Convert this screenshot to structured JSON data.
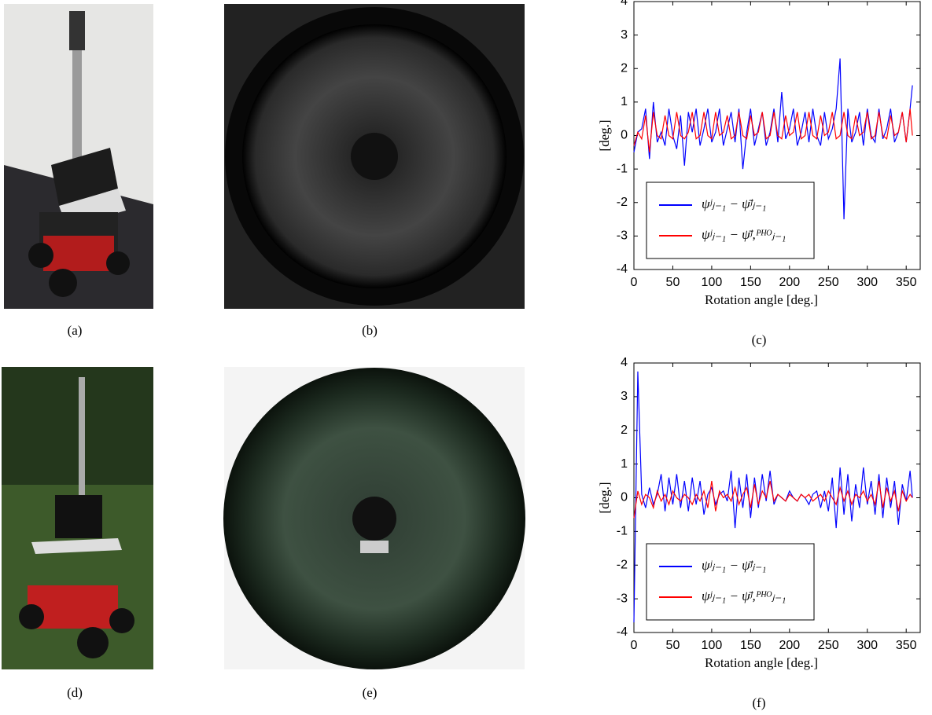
{
  "photos": [
    {
      "caption": "(a)"
    },
    {
      "caption": "(b)"
    },
    {
      "caption": "(d)"
    },
    {
      "caption": "(e)"
    }
  ],
  "chart_data": [
    {
      "type": "line",
      "caption": "(c)",
      "xlabel": "Rotation angle [deg.]",
      "ylabel": "[deg.]",
      "xlim": [
        0,
        368
      ],
      "ylim": [
        -4,
        4
      ],
      "xticks": [
        0,
        50,
        100,
        150,
        200,
        250,
        300,
        350
      ],
      "yticks": [
        -4,
        -3,
        -2,
        -1,
        0,
        1,
        2,
        3,
        4
      ],
      "x": [
        0,
        5,
        10,
        15,
        20,
        25,
        30,
        35,
        40,
        45,
        50,
        55,
        60,
        65,
        70,
        75,
        80,
        85,
        90,
        95,
        100,
        105,
        110,
        115,
        120,
        125,
        130,
        135,
        140,
        145,
        150,
        155,
        160,
        165,
        170,
        175,
        180,
        185,
        190,
        195,
        200,
        205,
        210,
        215,
        220,
        225,
        230,
        235,
        240,
        245,
        250,
        255,
        260,
        265,
        270,
        275,
        280,
        285,
        290,
        295,
        300,
        305,
        310,
        315,
        320,
        325,
        330,
        335,
        340,
        345,
        350,
        355,
        358
      ],
      "series": [
        {
          "name": "ψʲⱼ₋₁ − ψ̄ʲⱼ₋₁",
          "color": "#0000ff",
          "values": [
            -0.5,
            0.1,
            0.2,
            0.8,
            -0.7,
            1.0,
            -0.2,
            0.1,
            -0.3,
            0.8,
            0.0,
            -0.4,
            0.6,
            -0.9,
            0.7,
            0.1,
            0.8,
            -0.3,
            0.2,
            0.8,
            -0.2,
            0.1,
            0.8,
            -0.3,
            0.2,
            0.7,
            -0.2,
            0.8,
            -1.0,
            0.1,
            0.8,
            -0.3,
            0.2,
            0.7,
            -0.3,
            0.1,
            0.8,
            -0.2,
            1.3,
            -0.1,
            0.2,
            0.8,
            -0.3,
            0.1,
            0.7,
            -0.2,
            0.8,
            0.0,
            -0.3,
            0.7,
            -0.1,
            0.2,
            0.8,
            2.3,
            -2.5,
            0.8,
            -0.2,
            0.1,
            0.7,
            -0.3,
            0.8,
            0.0,
            -0.2,
            0.8,
            -0.1,
            0.2,
            0.8,
            -0.2,
            0.1,
            0.7,
            -0.2,
            0.8,
            1.5
          ]
        },
        {
          "name": "ψʲⱼ₋₁ − ψ̄ʲ,ᴾᴴᴼⱼ₋₁",
          "color": "#ff0000",
          "values": [
            -0.3,
            0.1,
            -0.1,
            0.6,
            -0.5,
            0.7,
            0.0,
            -0.1,
            0.6,
            0.0,
            -0.1,
            0.7,
            0.0,
            -0.1,
            0.1,
            0.7,
            -0.1,
            0.0,
            0.7,
            0.0,
            -0.1,
            0.7,
            0.0,
            0.1,
            0.6,
            -0.1,
            0.0,
            0.7,
            0.0,
            -0.1,
            0.6,
            0.0,
            0.1,
            0.7,
            -0.1,
            0.0,
            0.7,
            0.0,
            -0.1,
            0.6,
            0.0,
            0.1,
            0.7,
            -0.1,
            0.0,
            0.7,
            0.0,
            -0.1,
            0.6,
            0.0,
            0.1,
            0.7,
            -0.1,
            0.0,
            0.7,
            0.0,
            -0.1,
            0.6,
            0.0,
            0.1,
            0.7,
            -0.1,
            0.0,
            0.7,
            0.0,
            -0.1,
            0.6,
            0.0,
            0.1,
            0.7,
            -0.2,
            0.8,
            0.0
          ]
        }
      ]
    },
    {
      "type": "line",
      "caption": "(f)",
      "xlabel": "Rotation angle [deg.]",
      "ylabel": "[deg.]",
      "xlim": [
        0,
        368
      ],
      "ylim": [
        -4,
        4
      ],
      "xticks": [
        0,
        50,
        100,
        150,
        200,
        250,
        300,
        350
      ],
      "yticks": [
        -4,
        -3,
        -2,
        -1,
        0,
        1,
        2,
        3,
        4
      ],
      "x": [
        0,
        5,
        10,
        15,
        20,
        25,
        30,
        35,
        40,
        45,
        50,
        55,
        60,
        65,
        70,
        75,
        80,
        85,
        90,
        95,
        100,
        105,
        110,
        115,
        120,
        125,
        130,
        135,
        140,
        145,
        150,
        155,
        160,
        165,
        170,
        175,
        180,
        185,
        190,
        195,
        200,
        205,
        210,
        215,
        220,
        225,
        230,
        235,
        240,
        245,
        250,
        255,
        260,
        265,
        270,
        275,
        280,
        285,
        290,
        295,
        300,
        305,
        310,
        315,
        320,
        325,
        330,
        335,
        340,
        345,
        350,
        355,
        358
      ],
      "series": [
        {
          "name": "ψʲⱼ₋₁ − ψ̄ʲⱼ₋₁",
          "color": "#0000ff",
          "values": [
            -3.7,
            3.75,
            0.1,
            -0.3,
            0.3,
            -0.2,
            0.1,
            0.7,
            -0.4,
            0.6,
            -0.2,
            0.7,
            -0.3,
            0.5,
            -0.4,
            0.6,
            -0.2,
            0.5,
            -0.5,
            0.1,
            0.3,
            -0.2,
            0.1,
            0.2,
            -0.1,
            0.8,
            -0.9,
            0.6,
            -0.3,
            0.7,
            -0.6,
            0.6,
            -0.3,
            0.7,
            -0.1,
            0.8,
            -0.2,
            0.1,
            0.0,
            -0.1,
            0.2,
            0.0,
            -0.1,
            0.1,
            0.0,
            -0.2,
            0.1,
            0.2,
            -0.3,
            0.2,
            -0.4,
            0.6,
            -0.9,
            0.9,
            -0.5,
            0.7,
            -0.7,
            0.4,
            -0.3,
            0.9,
            -0.2,
            0.5,
            -0.5,
            0.7,
            -0.6,
            0.6,
            -0.3,
            0.5,
            -0.8,
            0.4,
            -0.1,
            0.8,
            0.0
          ]
        },
        {
          "name": "ψʲⱼ₋₁ − ψ̄ʲ,ᴾᴴᴼⱼ₋₁",
          "color": "#ff0000",
          "values": [
            -0.6,
            0.2,
            -0.2,
            0.1,
            0.0,
            -0.3,
            0.2,
            -0.1,
            0.1,
            -0.2,
            0.2,
            0.0,
            -0.1,
            0.1,
            0.0,
            -0.2,
            0.1,
            -0.1,
            0.2,
            -0.3,
            0.5,
            -0.4,
            0.2,
            0.0,
            0.1,
            -0.1,
            0.3,
            -0.2,
            0.1,
            0.3,
            -0.3,
            0.4,
            -0.2,
            0.2,
            0.0,
            0.5,
            -0.1,
            0.1,
            0.0,
            -0.1,
            0.1,
            0.0,
            -0.1,
            0.1,
            0.0,
            0.1,
            -0.1,
            0.0,
            0.1,
            -0.1,
            0.2,
            0.0,
            -0.2,
            0.3,
            -0.1,
            0.2,
            -0.2,
            0.1,
            0.0,
            0.2,
            -0.1,
            0.1,
            -0.2,
            0.5,
            -0.3,
            0.3,
            -0.1,
            0.2,
            -0.4,
            0.2,
            -0.1,
            0.1,
            0.0
          ]
        }
      ]
    }
  ]
}
